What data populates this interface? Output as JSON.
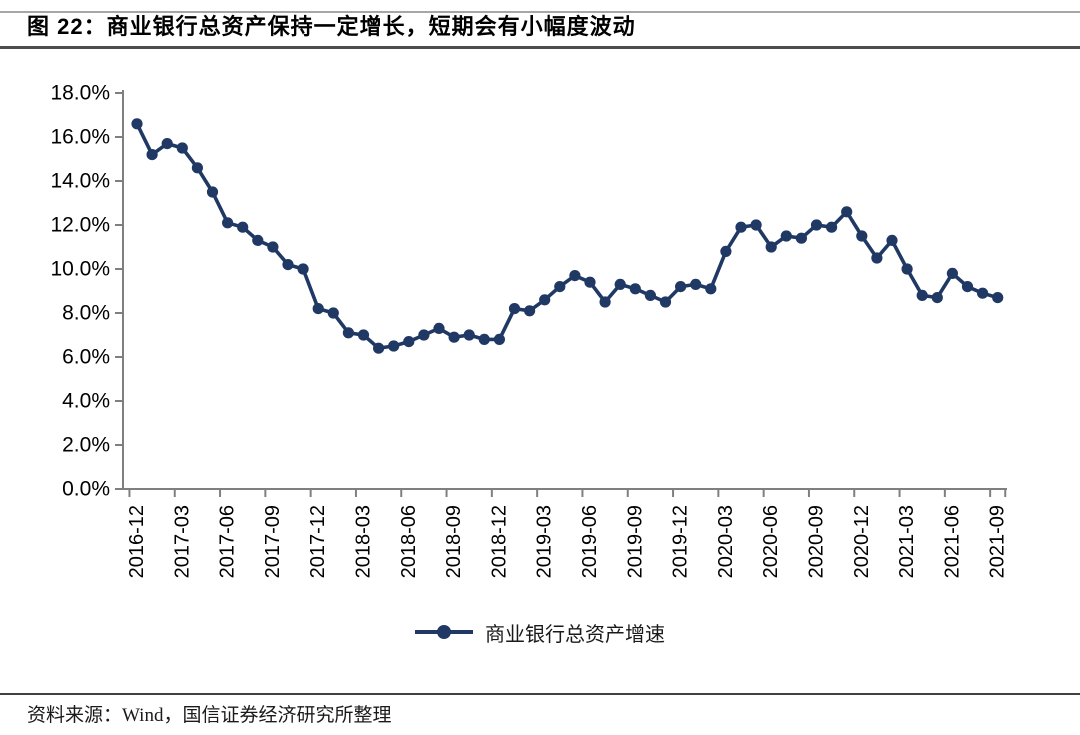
{
  "header": {
    "title": "图 22：商业银行总资产保持一定增长，短期会有小幅度波动"
  },
  "chart_data": {
    "type": "line",
    "title": "商业银行总资产保持一定增长，短期会有小幅度波动",
    "xlabel": "",
    "ylabel": "",
    "unit": "%",
    "ylim": [
      0,
      18
    ],
    "grid": false,
    "legend_position": "bottom",
    "line_color": "#1F3864",
    "axis_color": "#7f7f7f",
    "tick_text_color": "#000000",
    "x": [
      "2016-12",
      "2017-01",
      "2017-02",
      "2017-03",
      "2017-04",
      "2017-05",
      "2017-06",
      "2017-07",
      "2017-08",
      "2017-09",
      "2017-10",
      "2017-11",
      "2017-12",
      "2018-01",
      "2018-02",
      "2018-03",
      "2018-04",
      "2018-05",
      "2018-06",
      "2018-07",
      "2018-08",
      "2018-09",
      "2018-10",
      "2018-11",
      "2018-12",
      "2019-01",
      "2019-02",
      "2019-03",
      "2019-04",
      "2019-05",
      "2019-06",
      "2019-07",
      "2019-08",
      "2019-09",
      "2019-10",
      "2019-11",
      "2019-12",
      "2020-01",
      "2020-02",
      "2020-03",
      "2020-04",
      "2020-05",
      "2020-06",
      "2020-07",
      "2020-08",
      "2020-09",
      "2020-10",
      "2020-11",
      "2020-12",
      "2021-01",
      "2021-02",
      "2021-03",
      "2021-04",
      "2021-05",
      "2021-06",
      "2021-07",
      "2021-08",
      "2021-09"
    ],
    "series": [
      {
        "name": "商业银行总资产增速",
        "values": [
          16.6,
          15.2,
          15.7,
          15.5,
          14.6,
          13.5,
          12.1,
          11.9,
          11.3,
          11.0,
          10.2,
          10.0,
          8.2,
          8.0,
          7.1,
          7.0,
          6.4,
          6.5,
          6.7,
          7.0,
          7.3,
          6.9,
          7.0,
          6.8,
          6.8,
          8.2,
          8.1,
          8.6,
          9.2,
          9.7,
          9.4,
          8.5,
          9.3,
          9.1,
          8.8,
          8.5,
          9.2,
          9.3,
          9.1,
          10.8,
          11.9,
          12.0,
          11.0,
          11.5,
          11.4,
          12.0,
          11.9,
          12.6,
          11.5,
          10.5,
          11.3,
          10.0,
          8.8,
          8.7,
          9.8,
          9.2,
          8.9,
          8.7
        ]
      }
    ],
    "yticks": {
      "values": [
        18,
        16,
        14,
        12,
        10,
        8,
        6,
        4,
        2,
        0
      ],
      "labels": [
        "18.0%",
        "16.0%",
        "14.0%",
        "12.0%",
        "10.0%",
        "8.0%",
        "6.0%",
        "4.0%",
        "2.0%",
        "0.0%"
      ]
    },
    "xtick_labels": [
      "2016-12",
      "2017-03",
      "2017-06",
      "2017-09",
      "2017-12",
      "2018-03",
      "2018-06",
      "2018-09",
      "2018-12",
      "2019-03",
      "2019-06",
      "2019-09",
      "2019-12",
      "2020-03",
      "2020-06",
      "2020-09",
      "2020-12",
      "2021-03",
      "2021-06",
      "2021-09"
    ],
    "xtick_label_step": 3
  },
  "footer": {
    "source": "资料来源：Wind，国信证券经济研究所整理"
  }
}
